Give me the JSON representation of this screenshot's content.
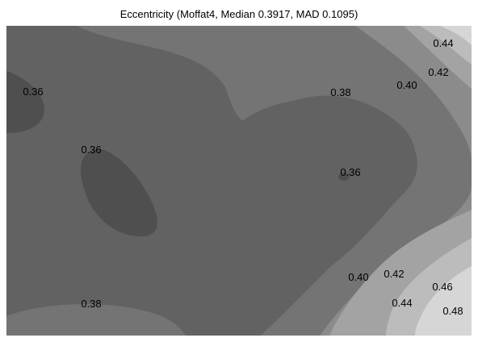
{
  "chart_data": {
    "type": "contour",
    "title": "Eccentricity (Moffat4, Median 0.3917, MAD 0.1095)",
    "xlabel": "",
    "ylabel": "",
    "grid": false,
    "legend": false,
    "levels": [
      0.36,
      0.38,
      0.4,
      0.42,
      0.44,
      0.46,
      0.48
    ],
    "level_colors": {
      "0.36": "#4f4f4f",
      "0.38": "#626262",
      "0.40": "#747474",
      "0.42": "#8b8b8b",
      "0.44": "#a3a3a3",
      "0.46": "#bcbcbc",
      "0.48": "#d6d6d6"
    },
    "labels": [
      "0.36",
      "0.36",
      "0.38",
      "0.36",
      "0.40",
      "0.42",
      "0.44",
      "0.38",
      "0.40",
      "0.42",
      "0.44",
      "0.46",
      "0.48"
    ]
  }
}
